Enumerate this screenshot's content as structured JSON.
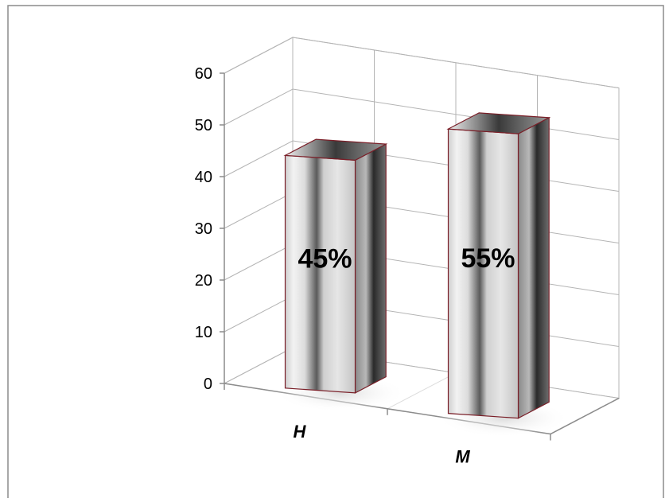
{
  "chart_data": {
    "type": "bar",
    "categories": [
      "H",
      "M"
    ],
    "values": [
      45,
      55
    ],
    "data_labels": [
      "45%",
      "55%"
    ],
    "ylim": [
      0,
      60
    ],
    "y_ticks": [
      "0",
      "10",
      "20",
      "30",
      "40",
      "50",
      "60"
    ],
    "grid": true,
    "legend": "none",
    "three_d": true
  },
  "colors": {
    "frame": "#8c8c8c",
    "grid": "#b4b4b4",
    "axis": "#8c8c8c",
    "bar_outline": "#7a1f28",
    "bar_light": "#e4e4e4",
    "bar_dark": "#1e1e1e",
    "text": "#000000"
  }
}
